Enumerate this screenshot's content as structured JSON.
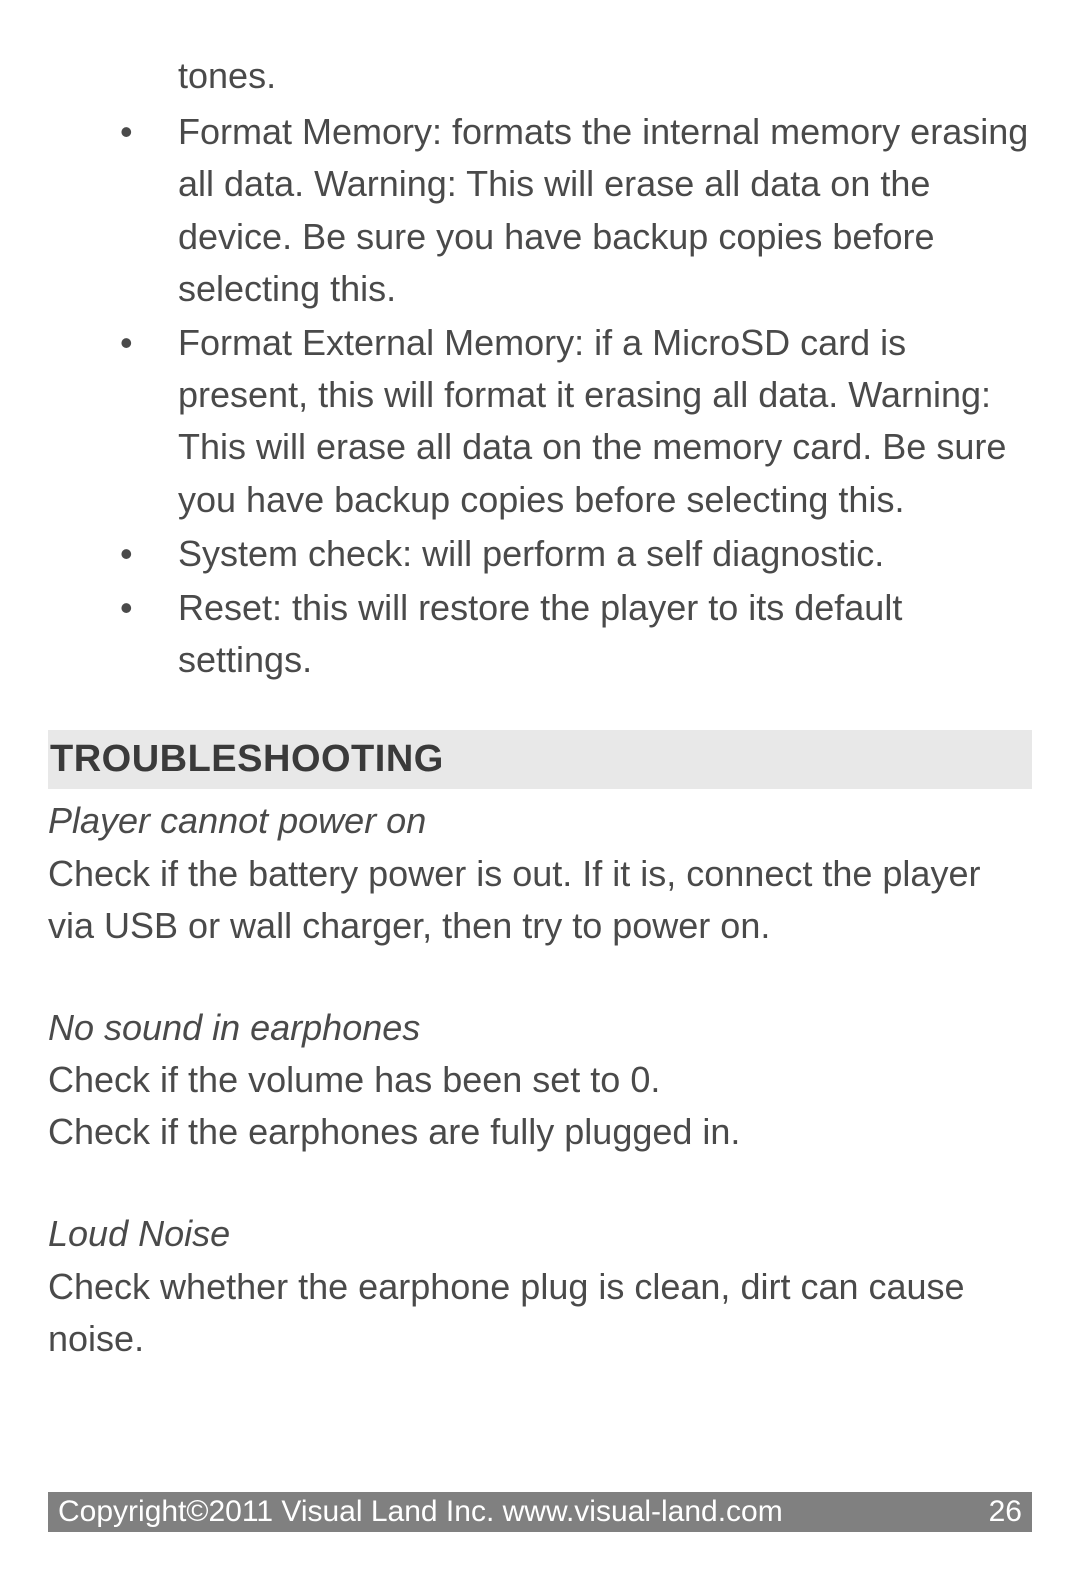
{
  "continuation": "tones.",
  "bullets": [
    "Format Memory: formats the internal memory erasing all data.  Warning: This will erase all data on the device.  Be sure you have backup copies before selecting this.",
    "Format External Memory: if a MicroSD card is present, this will format it erasing all data. Warning: This will erase all data on the memory card.  Be sure you have backup copies before selecting this.",
    "System check: will perform a self diagnostic.",
    "Reset: this will restore the player to its default settings."
  ],
  "section_heading": "TROUBLESHOOTING",
  "troubleshooting": [
    {
      "title": "Player cannot power on",
      "body": "Check if the battery power is out. If it is, connect the player via USB or wall charger, then try to power on."
    },
    {
      "title": "No sound in earphones",
      "body": "Check if the volume has been set to 0.\nCheck if the earphones are fully plugged in."
    },
    {
      "title": "Loud Noise",
      "body": "Check whether the earphone plug is clean, dirt can cause noise."
    }
  ],
  "footer": {
    "copyright": "Copyright©2011 Visual Land Inc. www.visual-land.com",
    "page_number": "26"
  },
  "colors": {
    "text": "#4a4a4a",
    "heading_bg": "#e8e8e8",
    "heading_text": "#3a3a3a",
    "footer_bg": "#808080",
    "footer_text": "#ffffff",
    "page_bg": "#ffffff"
  },
  "typography": {
    "body_fontsize": 36,
    "heading_fontsize": 38,
    "footer_fontsize": 30,
    "line_height": 1.45
  }
}
